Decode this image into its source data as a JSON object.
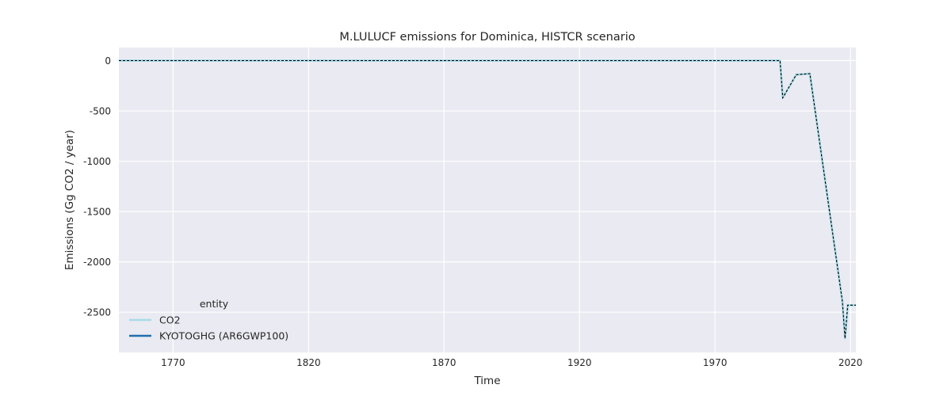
{
  "chart_data": {
    "type": "line",
    "title": "M.LULUCF emissions for Dominica, HISTCR scenario",
    "xlabel": "Time",
    "ylabel": "Emissions (Gg CO2 / year)",
    "xlim": [
      1750,
      2022
    ],
    "ylim": [
      -2900,
      130
    ],
    "xticks": [
      1770,
      1820,
      1870,
      1920,
      1970,
      2020
    ],
    "yticks": [
      0,
      -500,
      -1000,
      -1500,
      -2000,
      -2500
    ],
    "grid": true,
    "legend": {
      "title": "entity",
      "position": "lower-left"
    },
    "series": [
      {
        "name": "CO2",
        "color": "#a6dce8",
        "style": "solid",
        "x": [
          1750,
          1994,
          1995,
          2000,
          2005,
          2017,
          2018,
          2019,
          2022
        ],
        "y": [
          0,
          0,
          -370,
          -140,
          -130,
          -2390,
          -2760,
          -2430,
          -2430
        ]
      },
      {
        "name": "KYOTOGHG (AR6GWP100)",
        "color": "#1f6fb0",
        "style": "solid",
        "x": [
          1750,
          1994,
          1995,
          2000,
          2005,
          2017,
          2018,
          2019,
          2022
        ],
        "y": [
          0,
          0,
          -370,
          -140,
          -130,
          -2390,
          -2760,
          -2430,
          -2430
        ]
      }
    ],
    "overlay": {
      "color": "#000000",
      "style": "dashed",
      "x": [
        1750,
        1994,
        1995,
        2000,
        2005,
        2017,
        2018,
        2019,
        2022
      ],
      "y": [
        0,
        0,
        -370,
        -140,
        -130,
        -2390,
        -2760,
        -2430,
        -2430
      ]
    }
  }
}
